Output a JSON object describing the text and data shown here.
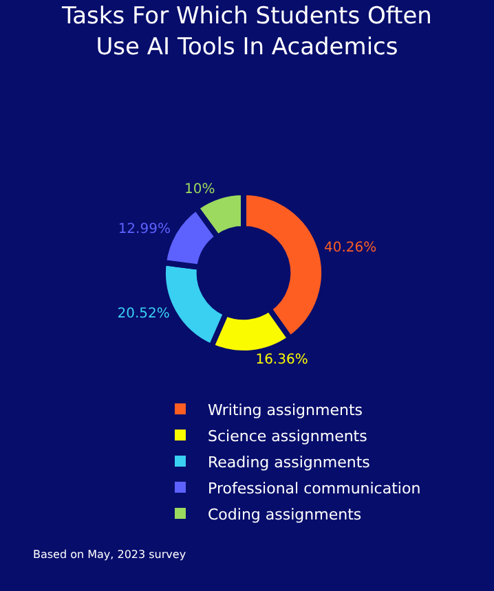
{
  "chart_data": {
    "type": "donut",
    "title": "Tasks For Which Students Often\nUse AI Tools In Academics",
    "categories": [
      "Writing assignments",
      "Science assignments",
      "Reading assignments",
      "Professional communication",
      "Coding assignments"
    ],
    "values": [
      40.26,
      16.36,
      20.52,
      12.99,
      10
    ],
    "value_labels": [
      "40.26%",
      "16.36%",
      "20.52%",
      "12.99%",
      "10%"
    ],
    "colors": [
      "#ff5e23",
      "#fbfb00",
      "#3ad0f2",
      "#5d62fe",
      "#9bd95f"
    ],
    "legend": "bottom",
    "annotations": [
      "Based on May, 2023 survey"
    ]
  }
}
